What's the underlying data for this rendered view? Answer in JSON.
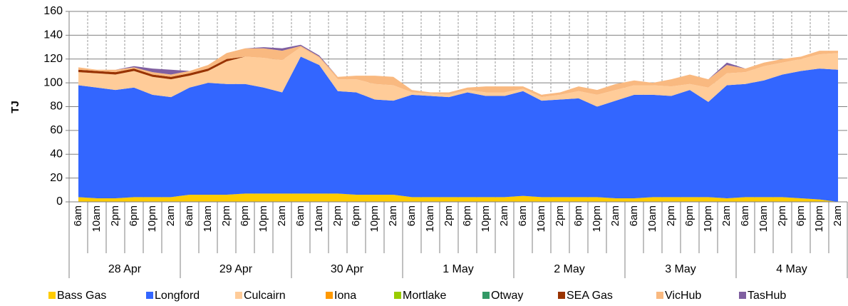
{
  "chart_data": {
    "type": "stacked-area",
    "y_label": "TJ",
    "ylim": [
      0,
      160
    ],
    "yticks": [
      0,
      20,
      40,
      60,
      80,
      100,
      120,
      140,
      160
    ],
    "grid": true,
    "categories": [
      "6am",
      "10am",
      "2pm",
      "6pm",
      "10pm",
      "2am",
      "6am",
      "10am",
      "2pm",
      "6pm",
      "10pm",
      "2am",
      "6am",
      "10am",
      "2pm",
      "6pm",
      "10pm",
      "2am",
      "6am",
      "10am",
      "2pm",
      "6pm",
      "10pm",
      "2am",
      "6am",
      "10am",
      "2pm",
      "6pm",
      "10pm",
      "2am",
      "6am",
      "10am",
      "2pm",
      "6pm",
      "10pm",
      "2am",
      "6am",
      "10am",
      "2pm",
      "6pm",
      "10pm",
      "2am"
    ],
    "groups": [
      "28 Apr",
      "29 Apr",
      "30 Apr",
      "1 May",
      "2 May",
      "3 May",
      "4 May"
    ],
    "series": [
      {
        "name": "Bass Gas",
        "color": "#FFCC00",
        "values": [
          4,
          3,
          3,
          4,
          4,
          4,
          6,
          6,
          6,
          7,
          7,
          7,
          7,
          7,
          7,
          6,
          6,
          6,
          4,
          4,
          4,
          4,
          4,
          4,
          5,
          4,
          4,
          4,
          4,
          3,
          3,
          4,
          4,
          4,
          4,
          3,
          4,
          4,
          4,
          3,
          2,
          0
        ]
      },
      {
        "name": "Longford",
        "color": "#3366FF",
        "values": [
          94,
          93,
          91,
          92,
          86,
          84,
          90,
          94,
          93,
          92,
          89,
          85,
          115,
          108,
          86,
          86,
          80,
          79,
          86,
          85,
          84,
          88,
          85,
          85,
          88,
          81,
          82,
          83,
          76,
          82,
          87,
          86,
          85,
          90,
          80,
          95,
          95,
          98,
          103,
          107,
          110,
          111
        ]
      },
      {
        "name": "Culcairn",
        "color": "#FFCC99",
        "values": [
          11,
          12,
          13,
          14,
          15,
          15,
          10,
          10,
          19,
          23,
          25,
          27,
          8,
          6,
          10,
          11,
          13,
          13,
          2,
          2,
          2,
          2,
          3,
          3,
          2,
          3,
          4,
          6,
          10,
          9,
          8,
          8,
          8,
          5,
          12,
          10,
          10,
          12,
          10,
          10,
          12,
          14
        ]
      },
      {
        "name": "Iona",
        "color": "#FF9900",
        "values": [
          0,
          0,
          0,
          0,
          0,
          0,
          0,
          0,
          0,
          0,
          0,
          0,
          0,
          0,
          0,
          0,
          0,
          0,
          0,
          0,
          0,
          0,
          0,
          0,
          0,
          0,
          0,
          0,
          0,
          0,
          0,
          0,
          0,
          0,
          0,
          0,
          0,
          0,
          0,
          0,
          0,
          0
        ]
      },
      {
        "name": "Mortlake",
        "color": "#99CC00",
        "values": [
          0,
          0,
          0,
          0,
          0,
          0,
          0,
          0,
          0,
          0,
          0,
          0,
          0,
          0,
          0,
          0,
          0,
          0,
          0,
          0,
          0,
          0,
          0,
          0,
          0,
          0,
          0,
          0,
          0,
          0,
          0,
          0,
          0,
          0,
          0,
          0,
          0,
          0,
          0,
          0,
          0,
          0
        ]
      },
      {
        "name": "Otway",
        "color": "#339966",
        "values": [
          0,
          0,
          0,
          0,
          0,
          0,
          0,
          0,
          0,
          0,
          0,
          0,
          0,
          0,
          0,
          0,
          0,
          0,
          0,
          0,
          0,
          0,
          0,
          0,
          0,
          0,
          0,
          0,
          0,
          0,
          0,
          0,
          0,
          0,
          0,
          0,
          0,
          0,
          0,
          0,
          0,
          0
        ]
      },
      {
        "name": "SEA Gas",
        "color": "#993300",
        "values": [
          2,
          2,
          2,
          2,
          2,
          2,
          2,
          2,
          2,
          0,
          0,
          0,
          0,
          0,
          0,
          0,
          0,
          0,
          0,
          0,
          0,
          0,
          0,
          0,
          0,
          0,
          0,
          0,
          0,
          0,
          0,
          0,
          0,
          0,
          0,
          0,
          0,
          0,
          0,
          0,
          0,
          0
        ]
      },
      {
        "name": "VicHub",
        "color": "#F9B980",
        "values": [
          2,
          1,
          2,
          1,
          2,
          2,
          2,
          3,
          5,
          7,
          8,
          8,
          1,
          1,
          2,
          3,
          7,
          7,
          2,
          1,
          2,
          2,
          5,
          5,
          2,
          2,
          2,
          4,
          4,
          5,
          4,
          2,
          6,
          8,
          7,
          7,
          3,
          3,
          3,
          2,
          3,
          2
        ]
      },
      {
        "name": "TasHub",
        "color": "#7F5FA0",
        "values": [
          0,
          0,
          0,
          1,
          3,
          4,
          0,
          0,
          0,
          0,
          1,
          2,
          1,
          1,
          0,
          0,
          0,
          0,
          0,
          0,
          0,
          0,
          0,
          0,
          0,
          0,
          0,
          0,
          0,
          0,
          0,
          0,
          0,
          0,
          0,
          2,
          0,
          0,
          0,
          0,
          0,
          0
        ]
      }
    ]
  }
}
